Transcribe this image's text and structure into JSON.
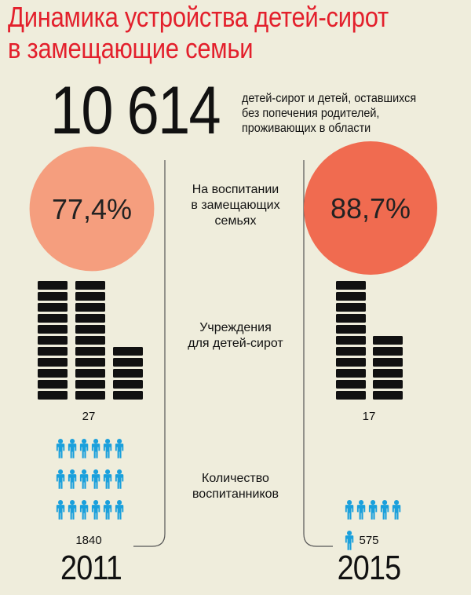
{
  "title_line1": "Динамика устройства детей-сирот",
  "title_line2": "в замещающие семьи",
  "total": {
    "value": "10 614",
    "desc_line1": "детей-сирот и детей, оставшихся",
    "desc_line2": "без попечения родителей,",
    "desc_line3": "проживающих в области"
  },
  "labels": {
    "foster_l1": "На воспитании",
    "foster_l2": "в замещающих",
    "foster_l3": "семьях",
    "inst_l1": "Учреждения",
    "inst_l2": "для детей-сирот",
    "pupils_l1": "Количество",
    "pupils_l2": "воспитанников"
  },
  "colors": {
    "circle_2011": "#f59e7e",
    "circle_2015": "#f06b50",
    "bricks": "#111111",
    "people": "#1aa0dc",
    "title": "#e3202c"
  },
  "chart_data": {
    "type": "infographic",
    "years": [
      "2011",
      "2015"
    ],
    "foster_share_percent": [
      77.4,
      88.7
    ],
    "foster_share_labels": [
      "77,4%",
      "88,7%"
    ],
    "institutions": [
      27,
      17
    ],
    "institutions_labels": [
      "27",
      "17"
    ],
    "pupils": [
      1840,
      575
    ],
    "pupils_labels": [
      "1840",
      "575"
    ]
  }
}
